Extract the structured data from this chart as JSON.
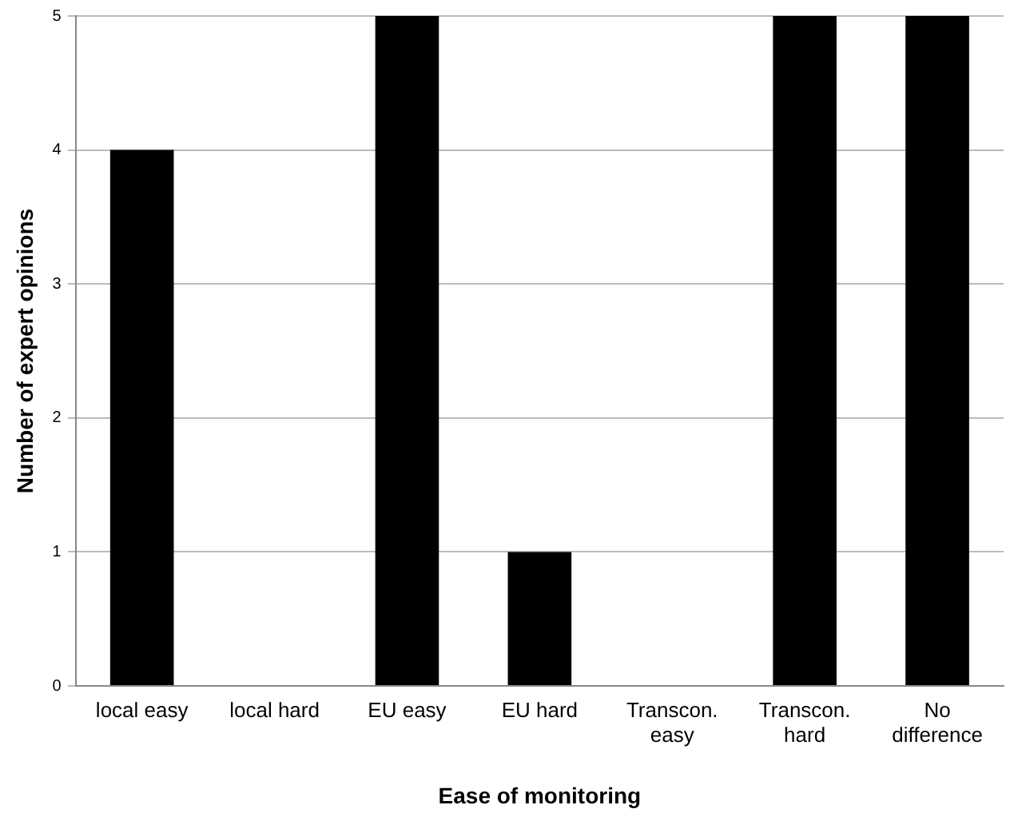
{
  "chart_data": {
    "type": "bar",
    "xlabel": "Ease of monitoring",
    "ylabel": "Number of expert opinions",
    "categories": [
      "local easy",
      "local hard",
      "EU easy",
      "EU hard",
      "Transcon. easy",
      "Transcon. hard",
      "No difference"
    ],
    "values": [
      4,
      0,
      5,
      1,
      0,
      5,
      5
    ],
    "color": "#000000",
    "ylim": [
      0,
      5
    ],
    "yticks": [
      0,
      1,
      2,
      3,
      4,
      5
    ],
    "grid": "y",
    "legend": false
  }
}
